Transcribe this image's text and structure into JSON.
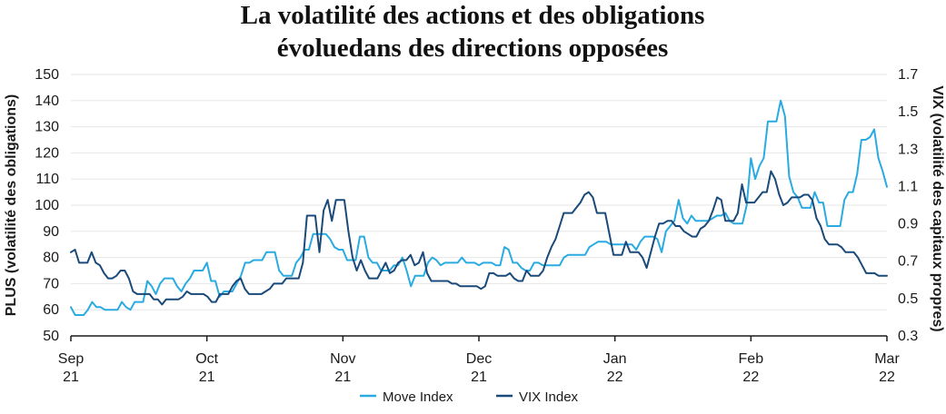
{
  "chart_data": {
    "type": "line",
    "title": [
      "La volatilité des actions et des obligations",
      "évoluedans des directions opposées"
    ],
    "ylabel_left": "PLUS (volatilité des obligations)",
    "ylabel_right": "VIX (volatilité des capitaux propres)",
    "ylim_left": [
      50,
      150
    ],
    "ylim_right": [
      0.3,
      1.7
    ],
    "yticks_left": [
      "150",
      "140",
      "130",
      "120",
      "110",
      "100",
      "90",
      "80",
      "70",
      "60",
      "50"
    ],
    "yticks_right": [
      "1.7",
      "1.5",
      "1.3",
      "1.1",
      "0.9",
      "0.7",
      "0.5",
      "0.3"
    ],
    "x_ticks": [
      {
        "line1": "Sep",
        "line2": "21"
      },
      {
        "line1": "Oct",
        "line2": "21"
      },
      {
        "line1": "Nov",
        "line2": "21"
      },
      {
        "line1": "Dec",
        "line2": "21"
      },
      {
        "line1": "Jan",
        "line2": "22"
      },
      {
        "line1": "Feb",
        "line2": "22"
      },
      {
        "line1": "Mar",
        "line2": "22"
      }
    ],
    "grid": true,
    "legend_position": "bottom",
    "series": [
      {
        "name": "Move Index",
        "color": "#29abe2",
        "axis": "left",
        "values": [
          61,
          58,
          58,
          58,
          60,
          63,
          61,
          61,
          60,
          60,
          60,
          60,
          63,
          61,
          60,
          63,
          63,
          63,
          71,
          69,
          66,
          70,
          72,
          72,
          72,
          69,
          67,
          70,
          72,
          75,
          75,
          75,
          78,
          71,
          71,
          65,
          67,
          67,
          67,
          70,
          73,
          78,
          78,
          79,
          79,
          79,
          82,
          82,
          82,
          75,
          73,
          73,
          73,
          78,
          80,
          83,
          83,
          89,
          89,
          89,
          89,
          87,
          84,
          83,
          83,
          79,
          79,
          79,
          88,
          88,
          80,
          78,
          78,
          75,
          75,
          75,
          77,
          77,
          80,
          75,
          69,
          73,
          73,
          73,
          78,
          80,
          79,
          77,
          78,
          78,
          78,
          78,
          80,
          78,
          78,
          78,
          77,
          78,
          78,
          78,
          77,
          77,
          84,
          83,
          78,
          78,
          76,
          75,
          75,
          78,
          78,
          77,
          77,
          77,
          77,
          77,
          80,
          81,
          81,
          81,
          81,
          81,
          84,
          85,
          86,
          86,
          86,
          85,
          85,
          85,
          85,
          85,
          85,
          83,
          86,
          88,
          88,
          88,
          87,
          82,
          90,
          92,
          94,
          102,
          95,
          93,
          96,
          94,
          94,
          94,
          94,
          95,
          96,
          96,
          97,
          94,
          93,
          93,
          93,
          100,
          118,
          110,
          115,
          118,
          132,
          132,
          132,
          140,
          134,
          111,
          105,
          103,
          99,
          99,
          99,
          105,
          101,
          101,
          92,
          92,
          92,
          92,
          102,
          105,
          105,
          112,
          125,
          125,
          126,
          129,
          118,
          113,
          107
        ]
      },
      {
        "name": "VIX Index",
        "color": "#1a4a7a",
        "axis": "left",
        "values": [
          82,
          83,
          78,
          78,
          78,
          82,
          78,
          77,
          74,
          72,
          72,
          73,
          75,
          75,
          72,
          67,
          66,
          66,
          66,
          66,
          64,
          64,
          62,
          64,
          64,
          64,
          64,
          65,
          67,
          66,
          66,
          66,
          66,
          65,
          63,
          63,
          66,
          66,
          66,
          69,
          71,
          72,
          68,
          66,
          66,
          66,
          66,
          67,
          68,
          70,
          70,
          70,
          72,
          72,
          72,
          72,
          78,
          96,
          96,
          96,
          82,
          98,
          102,
          94,
          102,
          102,
          102,
          90,
          80,
          75,
          79,
          75,
          72,
          72,
          72,
          75,
          78,
          74,
          75,
          78,
          79,
          79,
          81,
          77,
          78,
          82,
          74,
          71,
          71,
          71,
          71,
          71,
          70,
          70,
          69,
          69,
          69,
          69,
          69,
          68,
          69,
          74,
          74,
          73,
          73,
          73,
          74,
          72,
          71,
          71,
          75,
          73,
          73,
          73,
          75,
          80,
          84,
          87,
          92,
          97,
          97,
          97,
          99,
          101,
          104,
          105,
          103,
          97,
          97,
          97,
          89,
          81,
          81,
          81,
          86,
          82,
          82,
          82,
          80,
          76,
          82,
          88,
          93,
          93,
          94,
          94,
          92,
          92,
          90,
          89,
          88,
          88,
          91,
          92,
          94,
          98,
          103,
          102,
          94,
          94,
          94,
          97,
          108,
          101,
          101,
          101,
          103,
          105,
          105,
          113,
          110,
          104,
          100,
          101,
          103,
          103,
          103,
          104,
          104,
          102,
          95,
          92,
          87,
          85,
          85,
          85,
          84,
          82,
          82,
          82,
          80,
          77,
          74,
          74,
          74,
          73,
          73,
          73
        ]
      }
    ]
  }
}
